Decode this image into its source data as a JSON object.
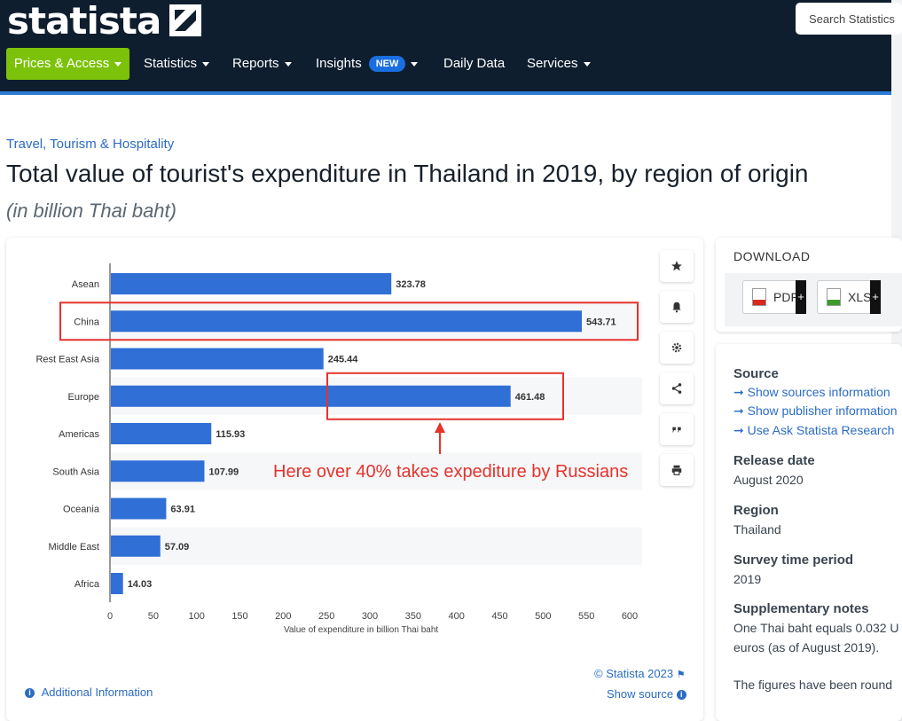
{
  "header": {
    "logo": "statista",
    "search_placeholder": "Search Statistics",
    "nav": [
      {
        "label": "Prices & Access"
      },
      {
        "label": "Statistics"
      },
      {
        "label": "Reports"
      },
      {
        "label": "Insights",
        "badge": "NEW"
      },
      {
        "label": "Daily Data"
      },
      {
        "label": "Services"
      }
    ]
  },
  "page": {
    "breadcrumb": "Travel, Tourism & Hospitality",
    "title": "Total value of tourist's expenditure in Thailand in 2019, by region of origin",
    "subtitle": "(in billion Thai baht)"
  },
  "chart_data": {
    "type": "bar",
    "orientation": "horizontal",
    "categories": [
      "Asean",
      "China",
      "Rest East Asia",
      "Europe",
      "Americas",
      "South Asia",
      "Oceania",
      "Middle East",
      "Africa"
    ],
    "values": [
      323.78,
      543.71,
      245.44,
      461.48,
      115.93,
      107.99,
      63.91,
      57.09,
      14.03
    ],
    "value_labels": [
      "323.78",
      "543.71",
      "245.44",
      "461.48",
      "115.93",
      "107.99",
      "63.91",
      "57.09",
      "14.03"
    ],
    "xlabel": "Value of expenditure in billion Thai baht",
    "xlim": [
      0,
      600
    ],
    "ticks": [
      "0",
      "50",
      "100",
      "150",
      "200",
      "250",
      "300",
      "350",
      "400",
      "450",
      "500",
      "550",
      "600"
    ],
    "bar_color": "#2f6fd6",
    "annotation": "Here over 40% takes expediture by Russians",
    "highlight_color": "#e5322c",
    "copyright": "© Statista 2023",
    "additional_info": "Additional Information",
    "show_source": "Show source"
  },
  "download": {
    "title": "DOWNLOAD",
    "pdf": "PDF",
    "xls": "XLS",
    "plus": "+"
  },
  "details": {
    "source_heading": "Source",
    "source_links": [
      "Show sources information",
      "Show publisher information",
      "Use Ask Statista Research"
    ],
    "release_heading": "Release date",
    "release_value": "August 2020",
    "region_heading": "Region",
    "region_value": "Thailand",
    "survey_heading": "Survey time period",
    "survey_value": "2019",
    "notes_heading": "Supplementary notes",
    "notes_line1": "One Thai baht equals 0.032 U",
    "notes_line2": "euros (as of August 2019).",
    "notes_line3": "The figures have been round"
  }
}
